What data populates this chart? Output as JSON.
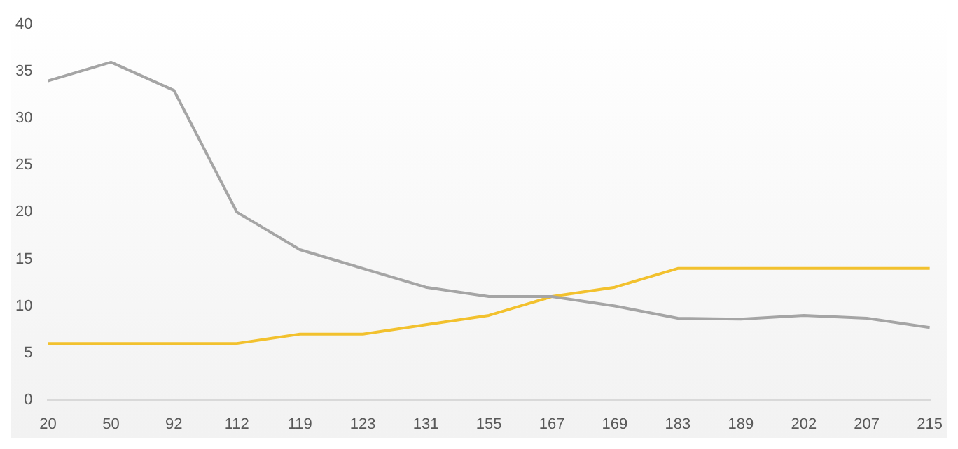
{
  "chart_data": {
    "type": "line",
    "categories": [
      "20",
      "50",
      "92",
      "112",
      "119",
      "123",
      "131",
      "155",
      "167",
      "169",
      "183",
      "189",
      "202",
      "207",
      "215"
    ],
    "series": [
      {
        "color": "#a5a5a5",
        "values": [
          34,
          36,
          33,
          20,
          16,
          14,
          12,
          11,
          11,
          10,
          8.7,
          8.6,
          9,
          8.7,
          7.7
        ]
      },
      {
        "color": "#f2c12e",
        "values": [
          6,
          6,
          6,
          6,
          7,
          7,
          8,
          9,
          11,
          12,
          14,
          14,
          14,
          14,
          14
        ]
      }
    ],
    "ylim": [
      0,
      40
    ],
    "yticks": [
      0,
      5,
      10,
      15,
      20,
      25,
      30,
      35,
      40
    ],
    "grid": false,
    "legend": false,
    "marker": "none",
    "line_style": "solid"
  }
}
